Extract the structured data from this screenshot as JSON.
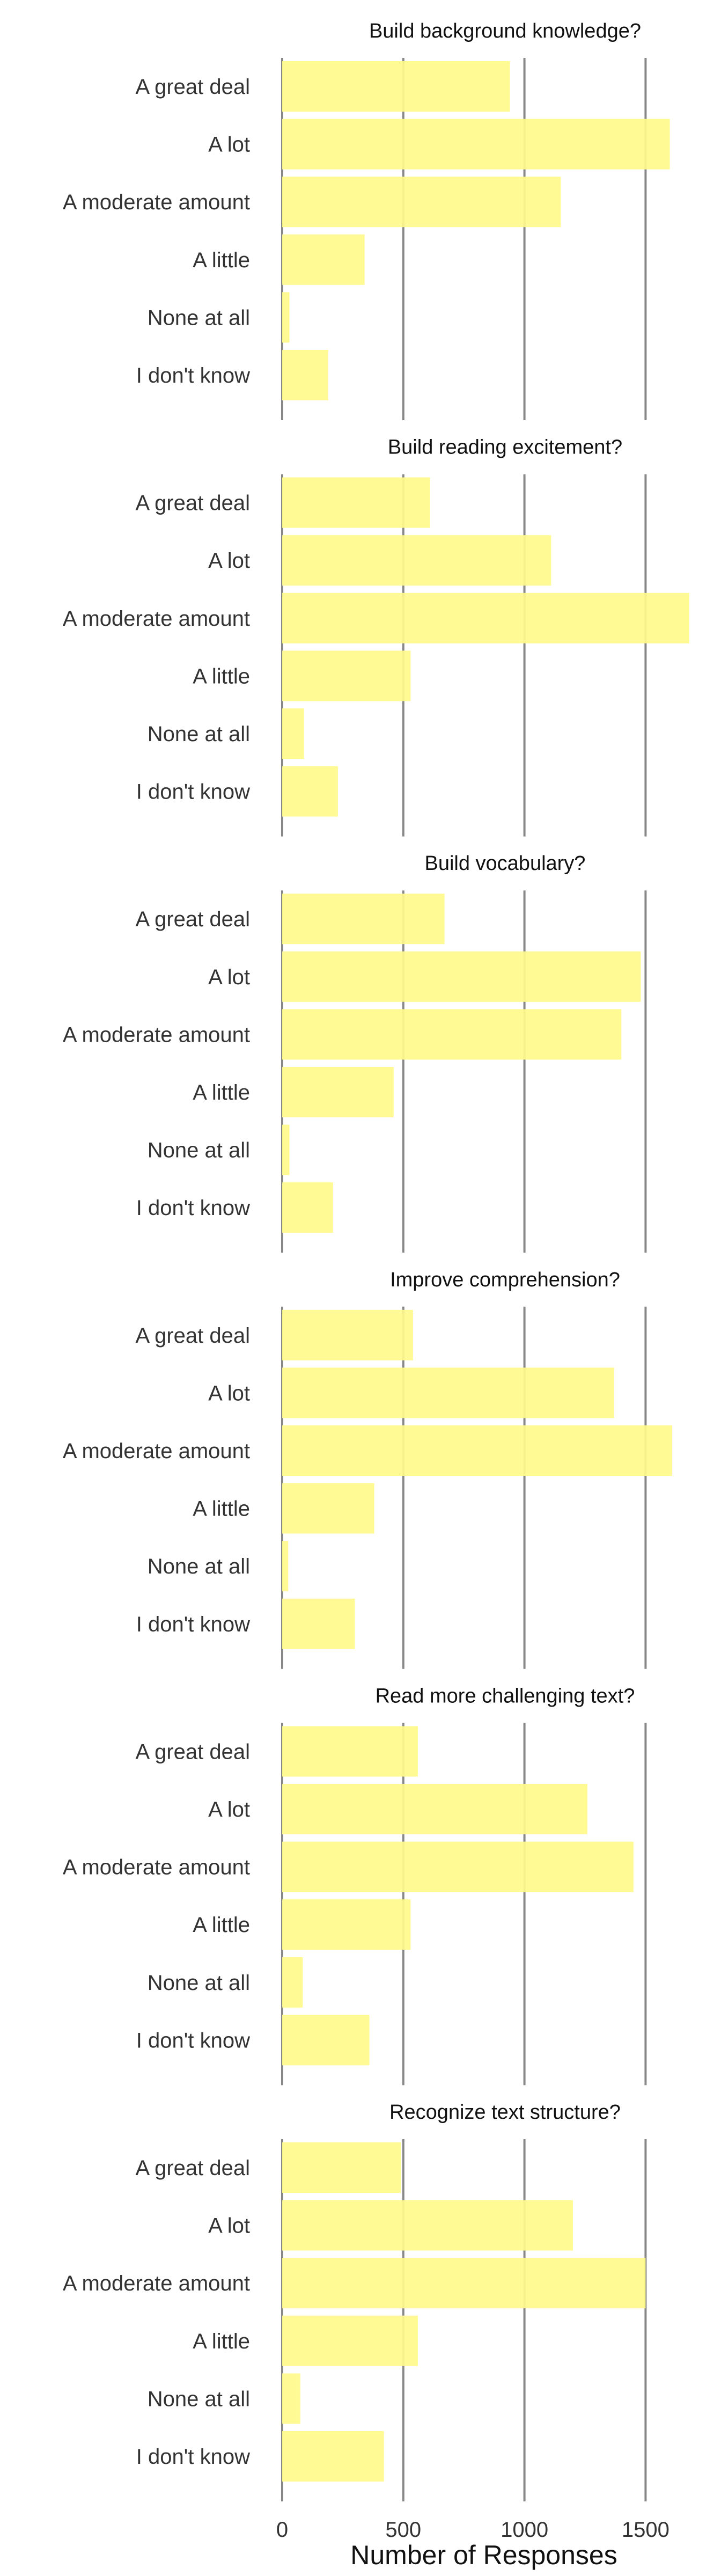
{
  "chart_data": {
    "type": "bar",
    "orientation": "horizontal",
    "xlabel": "Number of Responses",
    "xlim": [
      0,
      1700
    ],
    "xticks": [
      0,
      500,
      1000,
      1500
    ],
    "bar_color": "#fffa8a",
    "grid_color": "#888888",
    "categories": [
      "A great deal",
      "A lot",
      "A moderate amount",
      "A little",
      "None at all",
      "I don't know"
    ],
    "panels": [
      {
        "title": "Build background knowledge?",
        "values": [
          940,
          1600,
          1150,
          340,
          30,
          190
        ]
      },
      {
        "title": "Build reading excitement?",
        "values": [
          610,
          1110,
          1680,
          530,
          90,
          230
        ]
      },
      {
        "title": "Build vocabulary?",
        "values": [
          670,
          1480,
          1400,
          460,
          30,
          210
        ]
      },
      {
        "title": "Improve comprehension?",
        "values": [
          540,
          1370,
          1610,
          380,
          25,
          300
        ]
      },
      {
        "title": "Read more challenging text?",
        "values": [
          560,
          1260,
          1450,
          530,
          85,
          360
        ]
      },
      {
        "title": "Recognize text structure?",
        "values": [
          490,
          1200,
          1500,
          560,
          75,
          420
        ]
      }
    ]
  }
}
